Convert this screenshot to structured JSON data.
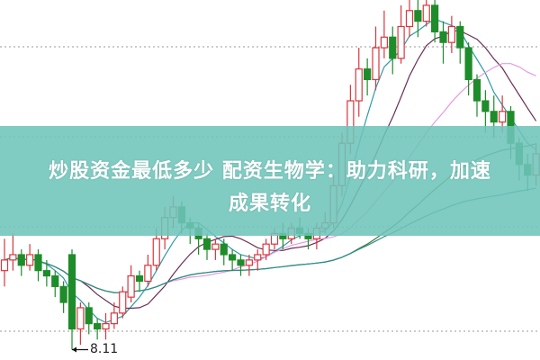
{
  "banner": {
    "line1": "炒股资金最低多少 配资生物学：助力科研，加速",
    "line2": "成果转化",
    "color": "#6ec4ba"
  },
  "chart_data": {
    "type": "candlestick",
    "title": "",
    "xlabel": "",
    "ylabel": "",
    "ylim": [
      8.0,
      14.7
    ],
    "grid": true,
    "low_marker": "8.11",
    "up_color": "#d9363e",
    "down_color": "#1e8c2a",
    "moving_averages": [
      {
        "period": 5,
        "color": "#2f9aa6"
      },
      {
        "period": 10,
        "color": "#6a2e55"
      },
      {
        "period": 20,
        "color": "#e59be2"
      },
      {
        "period": 40,
        "color": "#3e7a35"
      },
      {
        "period": 60,
        "color": "#2e8f8a"
      }
    ],
    "candles": [
      [
        9.6,
        9.8,
        10.2,
        9.3
      ],
      [
        9.8,
        9.9,
        10.3,
        9.6
      ],
      [
        9.9,
        9.7,
        10.0,
        9.5
      ],
      [
        9.7,
        9.9,
        10.1,
        9.6
      ],
      [
        9.9,
        9.6,
        10.0,
        9.4
      ],
      [
        9.6,
        9.5,
        9.8,
        9.3
      ],
      [
        9.5,
        9.3,
        9.6,
        9.1
      ],
      [
        9.3,
        9.0,
        9.4,
        8.8
      ],
      [
        9.9,
        8.5,
        10.0,
        8.11
      ],
      [
        8.5,
        8.9,
        9.0,
        8.2
      ],
      [
        8.9,
        8.6,
        9.0,
        8.4
      ],
      [
        8.6,
        8.5,
        8.7,
        8.3
      ],
      [
        8.5,
        8.6,
        8.8,
        8.3
      ],
      [
        8.6,
        8.8,
        9.0,
        8.5
      ],
      [
        8.8,
        9.2,
        9.3,
        8.7
      ],
      [
        9.1,
        9.5,
        9.7,
        9.0
      ],
      [
        9.5,
        9.4,
        9.6,
        9.2
      ],
      [
        9.4,
        9.7,
        9.9,
        9.3
      ],
      [
        9.7,
        10.2,
        10.4,
        9.6
      ],
      [
        10.2,
        10.6,
        10.8,
        10.0
      ],
      [
        10.6,
        10.8,
        11.0,
        10.4
      ],
      [
        10.8,
        10.5,
        10.9,
        10.3
      ],
      [
        10.5,
        10.4,
        10.6,
        10.1
      ],
      [
        10.4,
        10.2,
        10.5,
        9.9
      ],
      [
        10.2,
        10.0,
        10.3,
        9.8
      ],
      [
        10.0,
        10.1,
        10.2,
        9.8
      ],
      [
        10.1,
        9.9,
        10.2,
        9.7
      ],
      [
        9.9,
        9.8,
        10.0,
        9.6
      ],
      [
        9.8,
        9.7,
        9.9,
        9.5
      ],
      [
        9.7,
        9.8,
        9.9,
        9.5
      ],
      [
        9.8,
        9.9,
        10.0,
        9.6
      ],
      [
        9.9,
        10.1,
        10.2,
        9.8
      ],
      [
        10.1,
        10.3,
        10.4,
        10.0
      ],
      [
        10.3,
        10.2,
        10.5,
        10.0
      ],
      [
        10.2,
        10.4,
        10.5,
        10.1
      ],
      [
        10.4,
        10.3,
        10.6,
        10.2
      ],
      [
        10.3,
        10.2,
        10.4,
        10.0
      ],
      [
        10.2,
        10.4,
        10.5,
        10.0
      ],
      [
        10.4,
        10.5,
        10.7,
        10.3
      ],
      [
        10.5,
        11.2,
        11.4,
        10.4
      ],
      [
        11.2,
        12.0,
        12.2,
        11.0
      ],
      [
        12.0,
        12.8,
        13.1,
        11.8
      ],
      [
        12.8,
        13.4,
        13.8,
        12.5
      ],
      [
        13.4,
        13.2,
        13.6,
        12.9
      ],
      [
        13.2,
        13.8,
        14.2,
        13.0
      ],
      [
        13.8,
        14.0,
        14.5,
        13.6
      ],
      [
        14.0,
        13.6,
        14.2,
        13.3
      ],
      [
        13.6,
        14.2,
        14.6,
        13.5
      ],
      [
        14.2,
        14.5,
        14.7,
        14.0
      ],
      [
        14.5,
        14.3,
        14.7,
        14.0
      ],
      [
        14.3,
        14.6,
        14.7,
        14.2
      ],
      [
        14.6,
        14.1,
        14.7,
        13.9
      ],
      [
        14.1,
        13.9,
        14.3,
        13.5
      ],
      [
        13.9,
        14.2,
        14.4,
        13.7
      ],
      [
        14.2,
        13.8,
        14.3,
        13.5
      ],
      [
        13.8,
        13.2,
        13.9,
        12.9
      ],
      [
        13.2,
        12.8,
        13.3,
        12.5
      ],
      [
        12.8,
        12.6,
        13.0,
        12.2
      ],
      [
        12.6,
        12.4,
        12.9,
        12.1
      ],
      [
        12.4,
        12.6,
        12.9,
        12.2
      ],
      [
        12.6,
        12.0,
        12.7,
        11.7
      ],
      [
        12.0,
        11.6,
        12.1,
        11.3
      ],
      [
        11.6,
        11.4,
        11.8,
        11.1
      ],
      [
        11.4,
        11.8,
        12.0,
        11.2
      ]
    ]
  }
}
